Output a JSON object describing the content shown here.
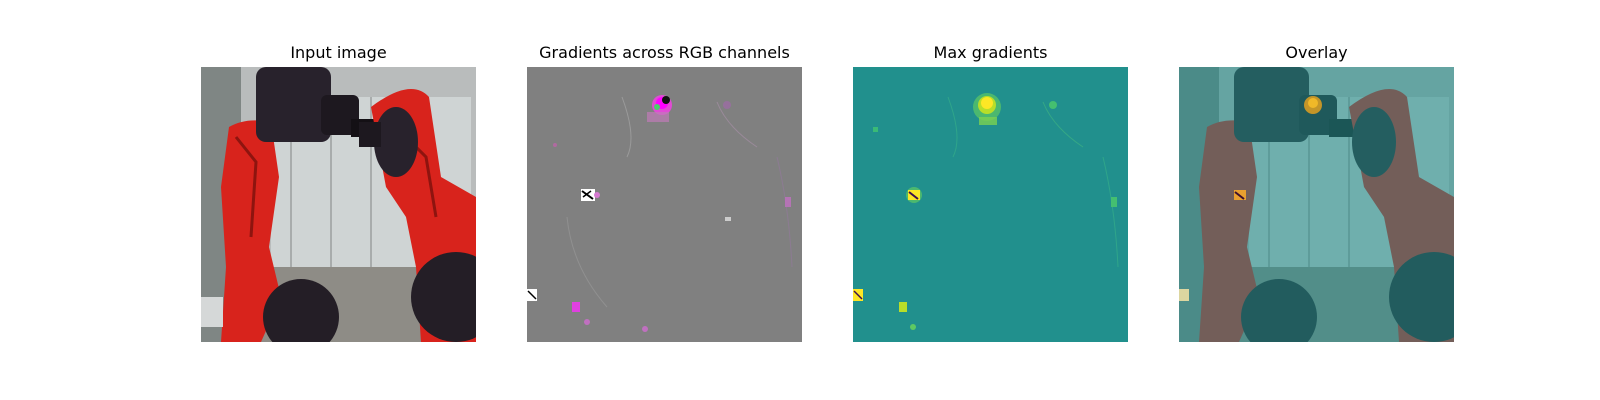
{
  "panels": [
    {
      "title": "Input image",
      "icon": "robot-arms-photo"
    },
    {
      "title": "Gradients across RGB channels",
      "icon": "rgb-gradient-map"
    },
    {
      "title": "Max gradients",
      "icon": "max-gradient-heatmap"
    },
    {
      "title": "Overlay",
      "icon": "overlay-heatmap-photo"
    }
  ],
  "colors": {
    "robot_red": "#d8231c",
    "gripper_dark": "#28222c",
    "gradient_gray": "#808080",
    "heatmap_teal": "#21908d",
    "heatmap_yellow": "#fde725"
  }
}
